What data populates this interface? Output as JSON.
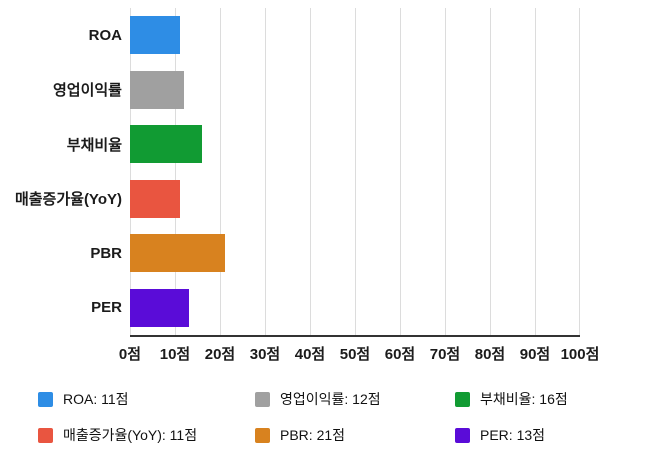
{
  "chart_data": {
    "type": "bar",
    "orientation": "horizontal",
    "title": "",
    "xlabel": "",
    "ylabel": "",
    "categories": [
      "ROA",
      "영업이익률",
      "부채비율",
      "매출증가율(YoY)",
      "PBR",
      "PER"
    ],
    "values": [
      11,
      12,
      16,
      11,
      21,
      13
    ],
    "colors": [
      "#2E8DE5",
      "#A0A0A0",
      "#119B33",
      "#E95540",
      "#D8821F",
      "#5A0CD8"
    ],
    "xlim": [
      0,
      100
    ],
    "x_tick_step": 10,
    "x_ticks": [
      "0점",
      "10점",
      "20점",
      "30점",
      "40점",
      "50점",
      "60점",
      "70점",
      "80점",
      "90점",
      "100점"
    ],
    "grid": true,
    "legend_position": "bottom",
    "legend": [
      {
        "label": "ROA: 11점",
        "color": "#2E8DE5"
      },
      {
        "label": "영업이익률: 12점",
        "color": "#A0A0A0"
      },
      {
        "label": "부채비율: 16점",
        "color": "#119B33"
      },
      {
        "label": "매출증가율(YoY): 11점",
        "color": "#E95540"
      },
      {
        "label": "PBR: 21점",
        "color": "#D8821F"
      },
      {
        "label": "PER: 13점",
        "color": "#5A0CD8"
      }
    ]
  }
}
